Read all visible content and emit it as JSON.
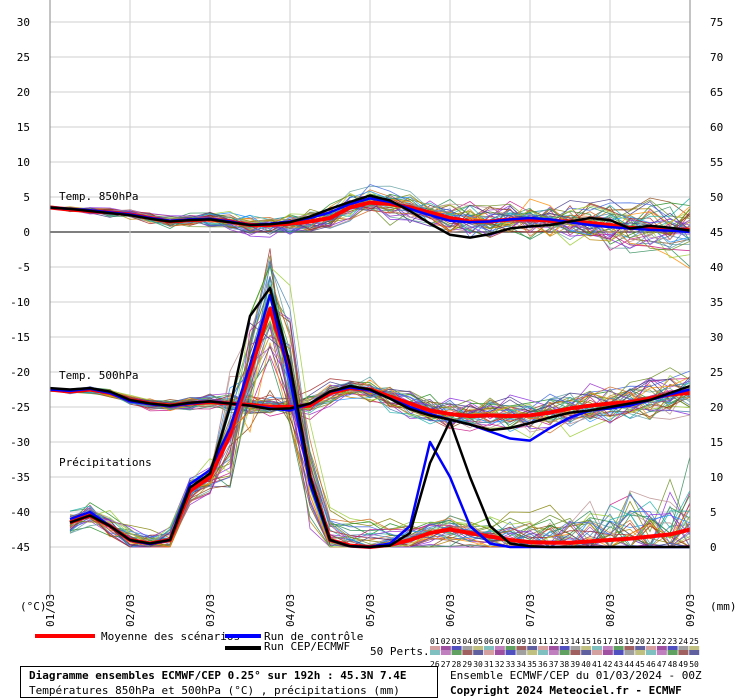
{
  "chart_data": {
    "type": "line",
    "left_axis_label": "(°C)",
    "right_axis_label": "(mm)",
    "left_ticks": [
      30,
      25,
      20,
      15,
      10,
      5,
      0,
      -5,
      -10,
      -15,
      -20,
      -25,
      -30,
      -35,
      -40,
      -45
    ],
    "right_ticks": [
      75,
      70,
      65,
      60,
      55,
      50,
      45,
      40,
      35,
      30,
      25,
      20,
      15,
      10,
      5,
      0
    ],
    "ylim_temp": [
      -45,
      30
    ],
    "ylim_precip": [
      0,
      75
    ],
    "x_tick_labels": [
      "01/03",
      "02/03",
      "03/03",
      "04/03",
      "05/03",
      "06/03",
      "07/03",
      "08/03",
      "09/03"
    ],
    "grid": true,
    "annotations": {
      "t850_label": "Temp. 850hPa",
      "t500_label": "Temp. 500hPa",
      "precip_label": "Précipitations"
    },
    "series": [
      {
        "name": "Moyenne des scénarios",
        "variable": "t850",
        "color": "#ff0000",
        "x": [
          0,
          0.25,
          0.5,
          0.75,
          1,
          1.25,
          1.5,
          1.75,
          2,
          2.25,
          2.5,
          2.75,
          3,
          3.25,
          3.5,
          3.75,
          4,
          4.25,
          4.5,
          4.75,
          5,
          5.25,
          5.5,
          5.75,
          6,
          6.25,
          6.5,
          6.75,
          7,
          7.25,
          7.5,
          7.75,
          8
        ],
        "y": [
          3.5,
          3.2,
          3.0,
          2.8,
          2.5,
          2.0,
          1.5,
          1.7,
          1.8,
          1.5,
          1.0,
          1.0,
          1.2,
          1.5,
          2.0,
          3.5,
          4.2,
          4.0,
          3.5,
          2.8,
          2.0,
          1.5,
          1.5,
          1.8,
          1.8,
          1.6,
          1.5,
          1.3,
          1.0,
          0.6,
          0.5,
          0.4,
          0.3
        ]
      },
      {
        "name": "Run de contrôle",
        "variable": "t850",
        "color": "#0000ff",
        "x": [
          0,
          0.25,
          0.5,
          0.75,
          1,
          1.25,
          1.5,
          1.75,
          2,
          2.25,
          2.5,
          2.75,
          3,
          3.25,
          3.5,
          3.75,
          4,
          4.25,
          4.5,
          4.75,
          5,
          5.25,
          5.5,
          5.75,
          6,
          6.25,
          6.5,
          6.75,
          7,
          7.25,
          7.5,
          7.75,
          8
        ],
        "y": [
          3.5,
          3.3,
          3.1,
          2.8,
          2.5,
          2.0,
          1.6,
          1.8,
          1.9,
          1.5,
          1.0,
          1.2,
          1.5,
          2.0,
          2.8,
          4.0,
          4.8,
          4.3,
          3.3,
          2.4,
          1.6,
          1.4,
          1.5,
          1.8,
          2.0,
          1.8,
          1.4,
          1.0,
          0.7,
          0.5,
          0.3,
          0.2,
          0.0
        ]
      },
      {
        "name": "Run CEP/ECMWF",
        "variable": "t850",
        "color": "#000000",
        "x": [
          0,
          0.25,
          0.5,
          0.75,
          1,
          1.25,
          1.5,
          1.75,
          2,
          2.25,
          2.5,
          2.75,
          3,
          3.25,
          3.5,
          3.75,
          4,
          4.25,
          4.5,
          4.75,
          5,
          5.25,
          5.5,
          5.75,
          6,
          6.25,
          6.5,
          6.75,
          7,
          7.25,
          7.5,
          7.75,
          8
        ],
        "y": [
          3.5,
          3.3,
          3.0,
          2.7,
          2.4,
          1.9,
          1.5,
          1.7,
          1.8,
          1.4,
          1.0,
          1.1,
          1.4,
          2.2,
          3.3,
          4.3,
          5.2,
          4.5,
          3.0,
          1.2,
          -0.4,
          -0.8,
          -0.3,
          0.5,
          0.8,
          1.0,
          1.5,
          2.0,
          1.7,
          0.5,
          0.9,
          0.6,
          0.2
        ]
      },
      {
        "name": "Moyenne des scénarios",
        "variable": "t500",
        "color": "#ff0000",
        "x": [
          0,
          0.25,
          0.5,
          0.75,
          1,
          1.25,
          1.5,
          1.75,
          2,
          2.25,
          2.5,
          2.75,
          3,
          3.25,
          3.5,
          3.75,
          4,
          4.25,
          4.5,
          4.75,
          5,
          5.25,
          5.5,
          5.75,
          6,
          6.25,
          6.5,
          6.75,
          7,
          7.25,
          7.5,
          7.75,
          8
        ],
        "y": [
          -22.5,
          -22.8,
          -22.5,
          -23.0,
          -24.0,
          -24.5,
          -24.8,
          -24.5,
          -24.3,
          -24.5,
          -24.7,
          -25.0,
          -25.0,
          -24.8,
          -23.0,
          -22.3,
          -22.5,
          -23.5,
          -24.5,
          -25.5,
          -26.0,
          -26.3,
          -26.2,
          -26.3,
          -26.2,
          -25.8,
          -25.2,
          -24.8,
          -24.5,
          -24.3,
          -23.8,
          -23.2,
          -23.0
        ]
      },
      {
        "name": "Run de contrôle",
        "variable": "t500",
        "color": "#0000ff",
        "x": [
          0,
          0.25,
          0.5,
          0.75,
          1,
          1.25,
          1.5,
          1.75,
          2,
          2.25,
          2.5,
          2.75,
          3,
          3.25,
          3.5,
          3.75,
          4,
          4.25,
          4.5,
          4.75,
          5,
          5.25,
          5.5,
          5.75,
          6,
          6.25,
          6.5,
          6.75,
          7,
          7.25,
          7.5,
          7.75,
          8
        ],
        "y": [
          -22.5,
          -22.7,
          -22.4,
          -23.0,
          -24.2,
          -24.6,
          -24.9,
          -24.5,
          -24.2,
          -24.5,
          -24.8,
          -25.2,
          -25.5,
          -24.5,
          -22.8,
          -22.2,
          -22.6,
          -23.8,
          -25.0,
          -26.0,
          -26.8,
          -27.5,
          -28.5,
          -29.5,
          -29.8,
          -28.0,
          -26.5,
          -25.5,
          -25.2,
          -24.8,
          -24.0,
          -23.2,
          -22.5
        ]
      },
      {
        "name": "Run CEP/ECMWF",
        "variable": "t500",
        "color": "#000000",
        "x": [
          0,
          0.25,
          0.5,
          0.75,
          1,
          1.25,
          1.5,
          1.75,
          2,
          2.25,
          2.5,
          2.75,
          3,
          3.25,
          3.5,
          3.75,
          4,
          4.25,
          4.5,
          4.75,
          5,
          5.25,
          5.5,
          5.75,
          6,
          6.25,
          6.5,
          6.75,
          7,
          7.25,
          7.5,
          7.75,
          8
        ],
        "y": [
          -22.3,
          -22.5,
          -22.3,
          -22.8,
          -24.0,
          -24.5,
          -24.8,
          -24.4,
          -24.2,
          -24.5,
          -24.8,
          -25.3,
          -25.2,
          -24.5,
          -22.8,
          -22.0,
          -22.5,
          -23.8,
          -25.3,
          -26.2,
          -26.8,
          -27.5,
          -28.3,
          -28.0,
          -27.3,
          -26.5,
          -25.8,
          -25.5,
          -25.0,
          -24.5,
          -24.0,
          -23.0,
          -22.0
        ]
      },
      {
        "name": "Moyenne des scénarios",
        "variable": "precip",
        "color": "#ff0000",
        "x": [
          0.25,
          0.5,
          0.75,
          1,
          1.25,
          1.5,
          1.75,
          2,
          2.25,
          2.5,
          2.75,
          3,
          3.25,
          3.5,
          3.75,
          4,
          4.25,
          4.5,
          4.75,
          5,
          5.25,
          5.5,
          5.75,
          6,
          6.25,
          6.5,
          6.75,
          7,
          7.25,
          7.5,
          7.75,
          8
        ],
        "y": [
          3.5,
          4.5,
          3.0,
          1.0,
          0.5,
          1.0,
          8.0,
          10.0,
          16.0,
          25.0,
          34.0,
          25.0,
          10.0,
          1.0,
          0.2,
          0.0,
          0.3,
          1.0,
          2.0,
          2.5,
          2.0,
          1.5,
          1.0,
          0.7,
          0.6,
          0.6,
          0.8,
          1.0,
          1.2,
          1.5,
          1.8,
          2.5
        ]
      },
      {
        "name": "Run de contrôle",
        "variable": "precip",
        "color": "#0000ff",
        "x": [
          0.25,
          0.5,
          0.75,
          1,
          1.25,
          1.5,
          1.75,
          2,
          2.25,
          2.5,
          2.75,
          3,
          3.25,
          3.5,
          3.75,
          4,
          4.25,
          4.5,
          4.75,
          5,
          5.25,
          5.5,
          5.75,
          6,
          6.25,
          6.5,
          6.75,
          7,
          7.25,
          7.5,
          7.75,
          8
        ],
        "y": [
          4.0,
          5.0,
          3.0,
          1.0,
          0.4,
          1.0,
          9.0,
          11.0,
          17.0,
          26.0,
          36.0,
          24.0,
          9.0,
          1.0,
          0.1,
          0.0,
          0.5,
          3.0,
          15.0,
          10.0,
          3.0,
          0.5,
          0.0,
          0.0,
          0.0,
          0.0,
          0.0,
          0.0,
          0.0,
          0.0,
          0.0,
          0.0
        ]
      },
      {
        "name": "Run CEP/ECMWF",
        "variable": "precip",
        "color": "#000000",
        "x": [
          0.25,
          0.5,
          0.75,
          1,
          1.25,
          1.5,
          1.75,
          2,
          2.25,
          2.5,
          2.75,
          3,
          3.25,
          3.5,
          3.75,
          4,
          4.25,
          4.5,
          4.75,
          5,
          5.25,
          5.5,
          5.75,
          6,
          6.25,
          6.5,
          6.75,
          7,
          7.25,
          7.5,
          7.75,
          8
        ],
        "y": [
          3.5,
          4.5,
          3.0,
          1.0,
          0.5,
          1.0,
          8.5,
          10.5,
          20.0,
          33.0,
          37.0,
          26.0,
          10.0,
          1.0,
          0.1,
          0.0,
          0.2,
          2.0,
          12.0,
          18.0,
          10.0,
          3.0,
          0.5,
          0.1,
          0.0,
          0.0,
          0.0,
          0.0,
          0.0,
          0.0,
          0.0,
          0.0
        ]
      }
    ]
  },
  "legend": {
    "mean_label": "Moyenne des scénarios",
    "control_label": "Run de contrôle",
    "ecmwf_label": "Run CEP/ECMWF",
    "mean_color": "#ff0000",
    "control_color": "#0000ff",
    "ecmwf_color": "#000000",
    "perts_label": "50 Perts.",
    "perts_numbers": [
      "01",
      "02",
      "03",
      "04",
      "05",
      "06",
      "07",
      "08",
      "09",
      "10",
      "11",
      "12",
      "13",
      "14",
      "15",
      "16",
      "17",
      "18",
      "19",
      "20",
      "21",
      "22",
      "23",
      "24",
      "25",
      "26",
      "27",
      "28",
      "29",
      "30",
      "31",
      "32",
      "33",
      "34",
      "35",
      "36",
      "37",
      "38",
      "39",
      "40",
      "41",
      "42",
      "43",
      "44",
      "45",
      "46",
      "47",
      "48",
      "49",
      "50"
    ]
  },
  "footer": {
    "title": "Diagramme ensembles ECMWF/CEP 0.25° sur 192h : 45.3N 7.4E",
    "subtitle": "Températures 850hPa et 500hPa (°C) , précipitations (mm)",
    "ensemble_line": "Ensemble ECMWF/CEP du 01/03/2024 - 00Z",
    "copyright": "Copyright 2024 Meteociel.fr - ECMWF"
  }
}
